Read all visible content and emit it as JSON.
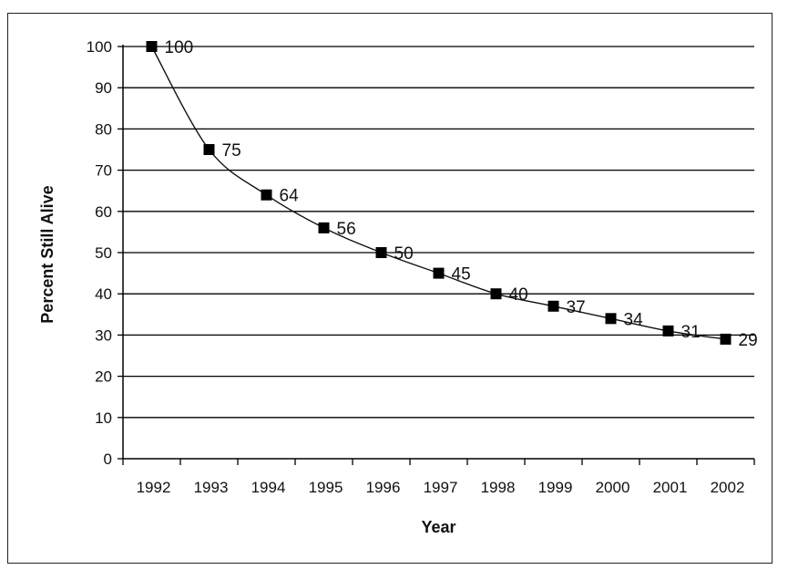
{
  "chart_data": {
    "type": "line",
    "title": "",
    "xlabel": "Year",
    "ylabel": "Percent Still Alive",
    "categories": [
      "1992",
      "1993",
      "1994",
      "1995",
      "1996",
      "1997",
      "1998",
      "1999",
      "2000",
      "2001",
      "2002"
    ],
    "series": [
      {
        "values": [
          100,
          75,
          64,
          56,
          50,
          45,
          40,
          37,
          34,
          31,
          29
        ]
      }
    ],
    "data_labels": [
      "100",
      "75",
      "64",
      "56",
      "50",
      "45",
      "40",
      "37",
      "34",
      "31",
      "29"
    ],
    "y_ticks": [
      0,
      10,
      20,
      30,
      40,
      50,
      60,
      70,
      80,
      90,
      100
    ],
    "y_tick_labels": [
      "0",
      "10",
      "20",
      "30",
      "40",
      "50",
      "60",
      "70",
      "80",
      "90",
      "100"
    ],
    "ylim": [
      0,
      100
    ],
    "grid": true,
    "legend": "none",
    "colors": {
      "line": "#111111",
      "marker": "#000000",
      "grid": "#000000",
      "axis": "#000000"
    }
  }
}
